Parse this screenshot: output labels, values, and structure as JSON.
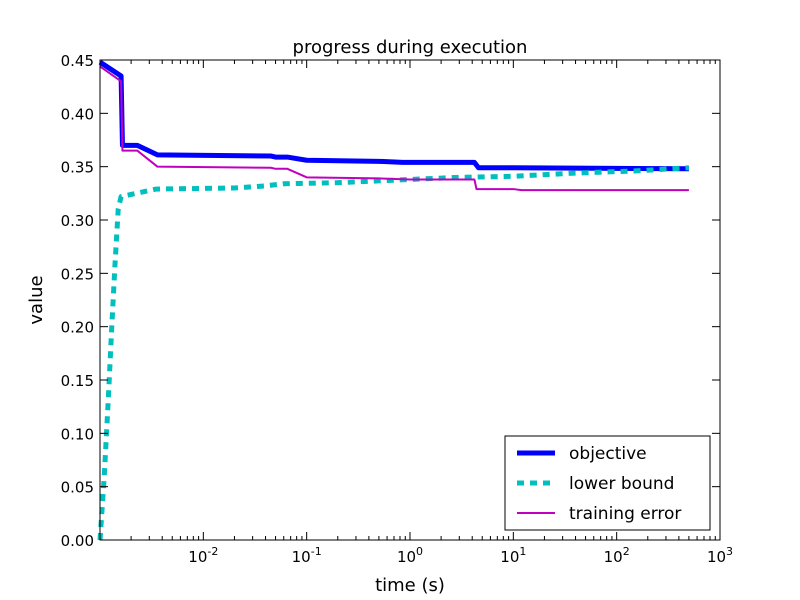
{
  "chart_data": {
    "type": "line",
    "title": "progress during execution",
    "xlabel": "time (s)",
    "ylabel": "value",
    "xscale": "log",
    "xlim": [
      0.001,
      1000
    ],
    "ylim": [
      0.0,
      0.45
    ],
    "x_ticks": [
      {
        "value": 0.01,
        "base": "10",
        "exp": "-2"
      },
      {
        "value": 0.1,
        "base": "10",
        "exp": "-1"
      },
      {
        "value": 1,
        "base": "10",
        "exp": "0"
      },
      {
        "value": 10,
        "base": "10",
        "exp": "1"
      },
      {
        "value": 100,
        "base": "10",
        "exp": "2"
      },
      {
        "value": 1000,
        "base": "10",
        "exp": "3"
      }
    ],
    "y_ticks": [
      "0.00",
      "0.05",
      "0.10",
      "0.15",
      "0.20",
      "0.25",
      "0.30",
      "0.35",
      "0.40",
      "0.45"
    ],
    "grid": false,
    "legend_position": "lower-right",
    "series": [
      {
        "name": "objective",
        "color": "#0000ff",
        "style": "solid-thick",
        "points": [
          [
            0.001,
            0.448
          ],
          [
            0.0016,
            0.435
          ],
          [
            0.00165,
            0.37
          ],
          [
            0.0023,
            0.37
          ],
          [
            0.0036,
            0.361
          ],
          [
            0.045,
            0.36
          ],
          [
            0.05,
            0.359
          ],
          [
            0.065,
            0.359
          ],
          [
            0.1,
            0.356
          ],
          [
            0.5,
            0.355
          ],
          [
            0.85,
            0.354
          ],
          [
            4.2,
            0.354
          ],
          [
            4.6,
            0.349
          ],
          [
            10,
            0.349
          ],
          [
            500,
            0.348
          ]
        ]
      },
      {
        "name": "lower bound",
        "color": "#00bfbf",
        "style": "dashed",
        "points": [
          [
            0.001,
            0.0
          ],
          [
            0.0011,
            0.06
          ],
          [
            0.0012,
            0.13
          ],
          [
            0.0013,
            0.2
          ],
          [
            0.0014,
            0.26
          ],
          [
            0.0015,
            0.31
          ],
          [
            0.0016,
            0.322
          ],
          [
            0.002,
            0.324
          ],
          [
            0.0035,
            0.329
          ],
          [
            0.02,
            0.33
          ],
          [
            0.04,
            0.332
          ],
          [
            0.06,
            0.334
          ],
          [
            0.2,
            0.335
          ],
          [
            1,
            0.338
          ],
          [
            3,
            0.34
          ],
          [
            10,
            0.341
          ],
          [
            40,
            0.344
          ],
          [
            150,
            0.346
          ],
          [
            500,
            0.349
          ]
        ]
      },
      {
        "name": "training error",
        "color": "#bf00bf",
        "style": "solid",
        "points": [
          [
            0.001,
            0.444
          ],
          [
            0.0016,
            0.43
          ],
          [
            0.00165,
            0.365
          ],
          [
            0.0023,
            0.365
          ],
          [
            0.0036,
            0.35
          ],
          [
            0.045,
            0.349
          ],
          [
            0.05,
            0.348
          ],
          [
            0.065,
            0.348
          ],
          [
            0.1,
            0.34
          ],
          [
            0.5,
            0.339
          ],
          [
            1,
            0.338
          ],
          [
            4.2,
            0.338
          ],
          [
            4.4,
            0.329
          ],
          [
            10,
            0.329
          ],
          [
            12,
            0.328
          ],
          [
            500,
            0.328
          ]
        ]
      }
    ]
  }
}
